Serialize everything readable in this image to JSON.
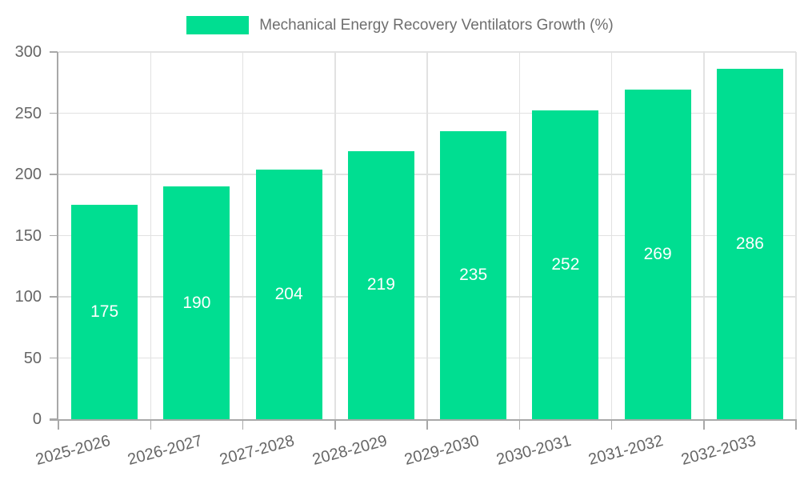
{
  "chart_data": {
    "type": "bar",
    "title": "Mechanical Energy Recovery Ventilators Growth (%)",
    "categories": [
      "2025-2026",
      "2026-2027",
      "2027-2028",
      "2028-2029",
      "2029-2030",
      "2030-2031",
      "2031-2032",
      "2032-2033"
    ],
    "values": [
      175,
      190,
      204,
      219,
      235,
      252,
      269,
      286
    ],
    "value_labels": [
      "175",
      "190",
      "204",
      "219",
      "235",
      "252",
      "269",
      "286"
    ],
    "xlabel": "",
    "ylabel": "",
    "ylim": [
      0,
      300
    ],
    "yticks": [
      0,
      50,
      100,
      150,
      200,
      250,
      300
    ],
    "grid": true,
    "legend_position": "top",
    "x_label_rotation_deg": -15
  },
  "colors": {
    "bar": "#00DE91",
    "grid": "#e2e2e2",
    "axis": "#a8a8a8",
    "tick_text": "#666666",
    "legend_text": "#6e6e6e",
    "value_text": "#ffffff",
    "background": "#ffffff"
  }
}
